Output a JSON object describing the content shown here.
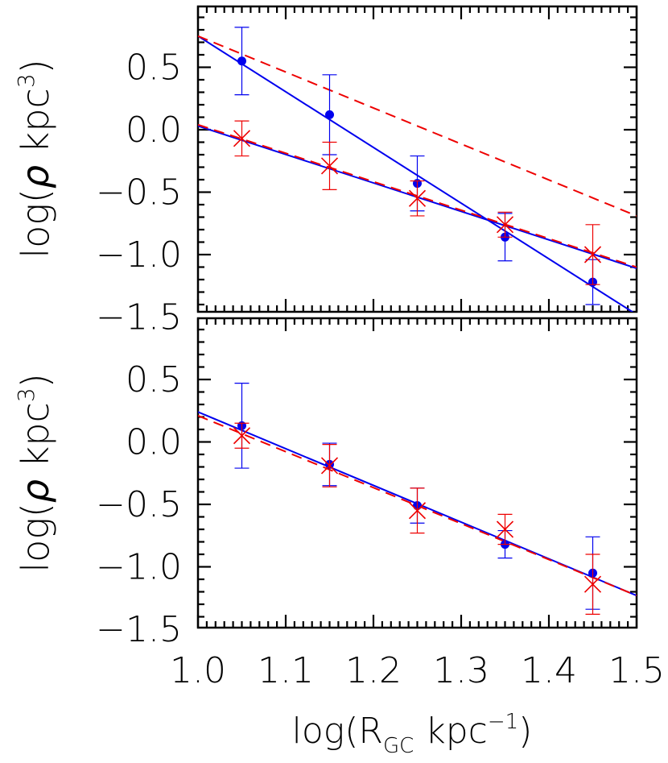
{
  "chart_data": [
    {
      "type": "scatter",
      "panel": "top",
      "ylabel_main": "log(",
      "ylabel_rho": "ρ",
      "ylabel_units": " kpc",
      "ylabel_sup": "3",
      "ylabel_close": ")",
      "xlim": [
        1.0,
        1.5
      ],
      "ylim": [
        -1.5,
        1.0
      ],
      "yticks": [
        {
          "value": 0.5,
          "label": "0.5"
        },
        {
          "value": 0.0,
          "label": "0.0"
        },
        {
          "value": -0.5,
          "label": "−0.5"
        },
        {
          "value": -1.0,
          "label": "−1.0"
        },
        {
          "value": -1.5,
          "label": "−1.5"
        }
      ],
      "series": [
        {
          "marker": "dot",
          "color": "#0000ee",
          "x": [
            1.05,
            1.15,
            1.25,
            1.35,
            1.45
          ],
          "y": [
            0.55,
            0.12,
            -0.43,
            -0.86,
            -1.22
          ],
          "err": [
            0.27,
            0.32,
            0.22,
            0.19,
            0.18
          ]
        },
        {
          "marker": "x",
          "color": "#ee0000",
          "x": [
            1.05,
            1.15,
            1.25,
            1.35,
            1.45
          ],
          "y": [
            -0.07,
            -0.29,
            -0.55,
            -0.76,
            -1.0
          ],
          "err": [
            0.14,
            0.19,
            0.14,
            0.1,
            0.24
          ]
        }
      ],
      "lines": [
        {
          "style": "solid",
          "color": "#0000ee",
          "x": [
            1.0,
            1.5
          ],
          "y": [
            0.75,
            -1.48
          ]
        },
        {
          "style": "solid",
          "color": "#0000ee",
          "x": [
            1.0,
            1.5
          ],
          "y": [
            0.03,
            -1.11
          ]
        },
        {
          "style": "dashed",
          "color": "#ee0000",
          "x": [
            1.0,
            1.5
          ],
          "y": [
            0.75,
            -0.69
          ]
        },
        {
          "style": "dashed",
          "color": "#ee0000",
          "x": [
            1.0,
            1.5
          ],
          "y": [
            0.04,
            -1.1
          ]
        }
      ]
    },
    {
      "type": "scatter",
      "panel": "bottom",
      "ylabel_main": "log(",
      "ylabel_rho": "ρ",
      "ylabel_units": " kpc",
      "ylabel_sup": "3",
      "ylabel_close": ")",
      "xlabel_main": "log(R",
      "xlabel_sub": "GC",
      "xlabel_units": " kpc",
      "xlabel_sup": "−1",
      "xlabel_close": ")",
      "xlim": [
        1.0,
        1.5
      ],
      "ylim": [
        -1.5,
        1.0
      ],
      "xticks": [
        {
          "value": 1.0,
          "label": "1.0"
        },
        {
          "value": 1.1,
          "label": "1.1"
        },
        {
          "value": 1.2,
          "label": "1.2"
        },
        {
          "value": 1.3,
          "label": "1.3"
        },
        {
          "value": 1.4,
          "label": "1.4"
        },
        {
          "value": 1.5,
          "label": "1.5"
        }
      ],
      "yticks": [
        {
          "value": 0.5,
          "label": "0.5"
        },
        {
          "value": 0.0,
          "label": "0.0"
        },
        {
          "value": -0.5,
          "label": "−0.5"
        },
        {
          "value": -1.0,
          "label": "−1.0"
        },
        {
          "value": -1.5,
          "label": "−1.5"
        }
      ],
      "series": [
        {
          "marker": "dot",
          "color": "#0000ee",
          "x": [
            1.05,
            1.15,
            1.25,
            1.35,
            1.45
          ],
          "y": [
            0.13,
            -0.18,
            -0.51,
            -0.82,
            -1.05
          ],
          "err": [
            0.34,
            0.17,
            0.14,
            0.11,
            0.29
          ]
        },
        {
          "marker": "x",
          "color": "#ee0000",
          "x": [
            1.05,
            1.15,
            1.25,
            1.35,
            1.45
          ],
          "y": [
            0.05,
            -0.19,
            -0.55,
            -0.7,
            -1.14
          ],
          "err": [
            0.1,
            0.17,
            0.18,
            0.12,
            0.24
          ]
        }
      ],
      "lines": [
        {
          "style": "solid",
          "color": "#0000ee",
          "x": [
            1.0,
            1.5
          ],
          "y": [
            0.24,
            -1.23
          ]
        },
        {
          "style": "dashed",
          "color": "#ee0000",
          "x": [
            1.0,
            1.5
          ],
          "y": [
            0.21,
            -1.23
          ]
        }
      ]
    }
  ]
}
